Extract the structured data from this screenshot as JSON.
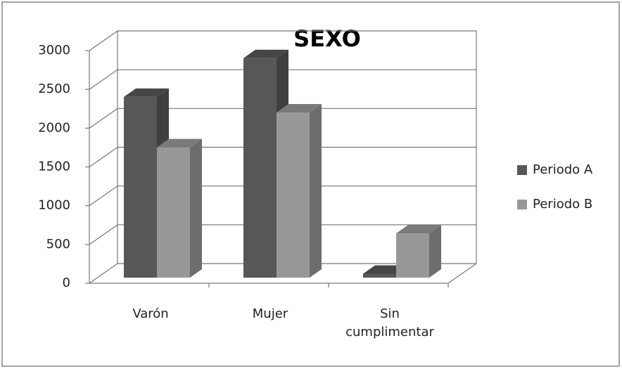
{
  "chart_data": {
    "type": "bar3d",
    "title": "SEXO",
    "categories": [
      "Varón",
      "Mujer",
      "Sin cumplimentar"
    ],
    "series": [
      {
        "name": "Periodo A",
        "color": "#575757",
        "values": [
          2330,
          2830,
          50
        ]
      },
      {
        "name": "Periodo B",
        "color": "#989898",
        "values": [
          1680,
          2130,
          570
        ]
      }
    ],
    "ylim": [
      0,
      3000
    ],
    "yticks": [
      0,
      500,
      1000,
      1500,
      2000,
      2500,
      3000
    ],
    "grid": true,
    "legend": "right"
  }
}
